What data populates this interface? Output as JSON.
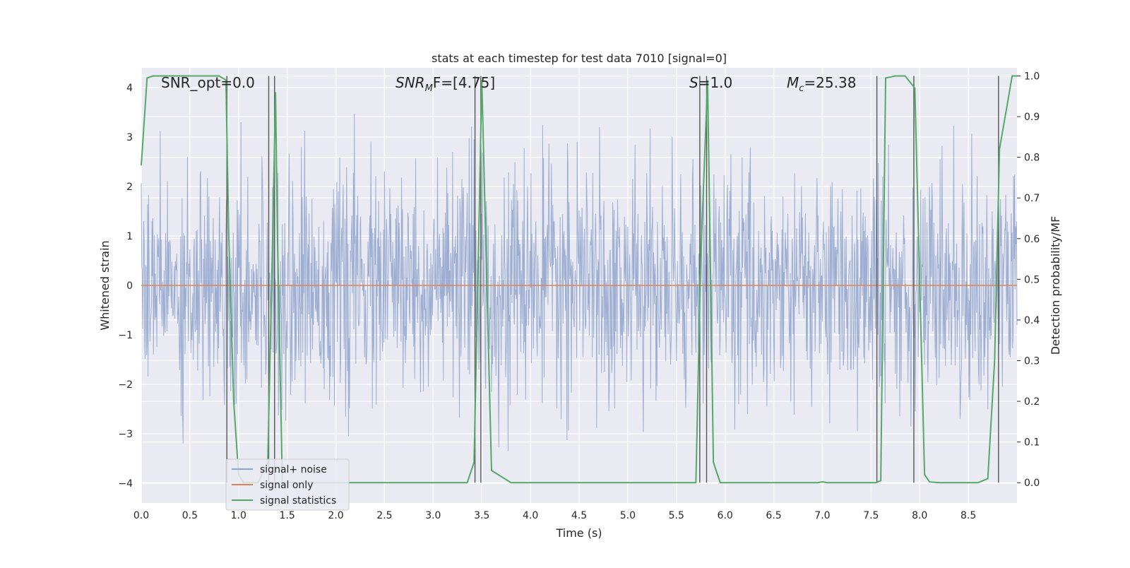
{
  "chart_data": {
    "type": "line",
    "title": "stats at each timestep for test data 7010 [signal=0]",
    "xlabel": "Time (s)",
    "ylabel_left": "Whitened strain",
    "ylabel_right": "Detection probability/MF",
    "xlim": [
      0.0,
      9.0
    ],
    "ylim_left": [
      -4.4,
      4.4
    ],
    "ylim_right": [
      -0.05,
      1.02
    ],
    "x_ticks": [
      "0.0",
      "0.5",
      "1.0",
      "1.5",
      "2.0",
      "2.5",
      "3.0",
      "3.5",
      "4.0",
      "4.5",
      "5.0",
      "5.5",
      "6.0",
      "6.5",
      "7.0",
      "7.5",
      "8.0",
      "8.5"
    ],
    "y_left_ticks": [
      "4",
      "3",
      "2",
      "1",
      "0",
      "−1",
      "−2",
      "−3",
      "−4"
    ],
    "y_right_ticks": [
      "1.0",
      "0.9",
      "0.8",
      "0.7",
      "0.6",
      "0.5",
      "0.4",
      "0.3",
      "0.2",
      "0.1",
      "0.0"
    ],
    "grid": true,
    "legend_position": "lower-left",
    "annotations": {
      "snr_opt": "SNR_opt=0.0",
      "snr_mf_main": "SNR",
      "snr_mf_sub": "M",
      "snr_mf_rest": "F=[4.75]",
      "s_main": "S",
      "s_rest": "=1.0",
      "mc_main": "M",
      "mc_sub": "c",
      "mc_rest": "=25.38"
    },
    "series": [
      {
        "name": "signal+ noise",
        "color": "#8fa3cd",
        "axis": "left",
        "description_values": "whitened noise, envelope approx ±2.3, spikes to ±3.6"
      },
      {
        "name": "signal only",
        "color": "#dd8452",
        "axis": "left",
        "x": [
          0.0,
          9.0
        ],
        "values": [
          0.0,
          0.0
        ]
      },
      {
        "name": "signal statistics",
        "color": "#55a868",
        "axis": "right",
        "x": [
          0.0,
          0.06,
          0.12,
          0.2,
          0.4,
          0.6,
          0.8,
          0.87,
          0.9,
          0.95,
          1.0,
          1.05,
          1.1,
          1.2,
          1.3,
          1.35,
          1.38,
          1.4,
          1.45,
          1.5,
          1.8,
          2.5,
          3.0,
          3.35,
          3.42,
          3.46,
          3.5,
          3.55,
          3.6,
          3.8,
          4.5,
          5.0,
          5.5,
          5.7,
          5.75,
          5.82,
          5.88,
          5.95,
          6.0,
          6.5,
          6.95,
          7.0,
          7.05,
          7.2,
          7.4,
          7.55,
          7.6,
          7.65,
          7.75,
          7.85,
          7.95,
          8.05,
          8.1,
          8.2,
          8.4,
          8.6,
          8.7,
          8.77,
          8.82,
          8.9,
          8.95,
          9.0
        ],
        "values": [
          0.78,
          0.995,
          1.0,
          1.0,
          1.0,
          1.0,
          1.0,
          0.99,
          0.6,
          0.2,
          0.02,
          0.0,
          0.0,
          0.0,
          0.05,
          0.6,
          0.96,
          0.6,
          0.0,
          0.0,
          0.0,
          0.0,
          0.0,
          0.0,
          0.05,
          0.5,
          0.99,
          0.5,
          0.03,
          0.0,
          0.0,
          0.0,
          0.0,
          0.0,
          0.55,
          0.99,
          0.05,
          0.0,
          0.0,
          0.0,
          0.0,
          0.002,
          0.0,
          0.0,
          0.0,
          0.0,
          0.005,
          0.995,
          1.0,
          1.0,
          0.97,
          0.02,
          0.002,
          0.0,
          0.0,
          0.0,
          0.01,
          0.3,
          0.82,
          0.93,
          1.0,
          1.0
        ]
      }
    ],
    "vertical_markers": [
      0.88,
      1.31,
      1.37,
      3.43,
      3.49,
      5.74,
      5.81,
      7.56,
      7.94,
      8.81
    ]
  }
}
